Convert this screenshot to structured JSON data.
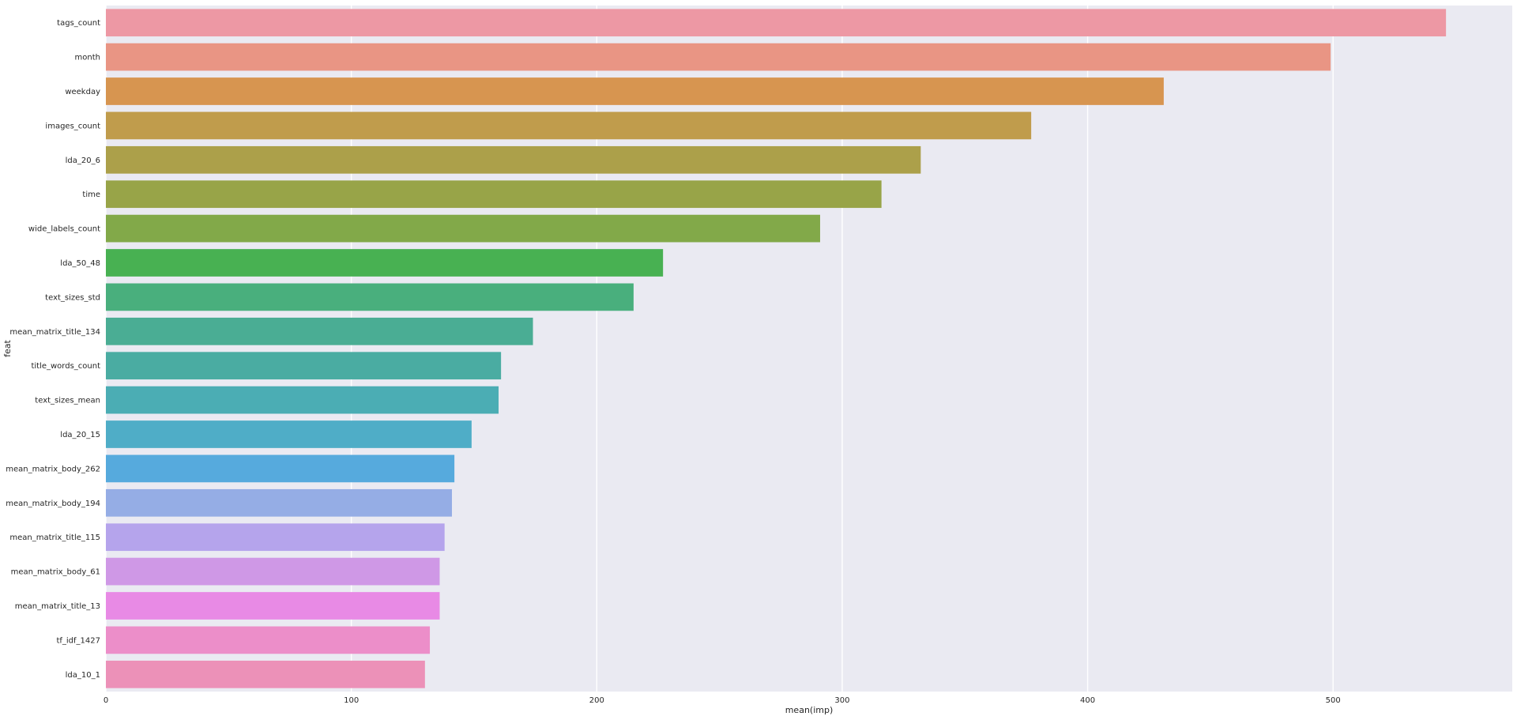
{
  "chart_data": {
    "type": "bar",
    "orientation": "horizontal",
    "xlabel": "mean(imp)",
    "ylabel": "feat",
    "xlim": [
      0,
      573
    ],
    "xticks": [
      0,
      100,
      200,
      300,
      400,
      500
    ],
    "grid": true,
    "legend": "none",
    "background_color": "#EAEAF2",
    "categories": [
      "tags_count",
      "month",
      "weekday",
      "images_count",
      "lda_20_6",
      "time",
      "wide_labels_count",
      "lda_50_48",
      "text_sizes_std",
      "mean_matrix_title_134",
      "title_words_count",
      "text_sizes_mean",
      "lda_20_15",
      "mean_matrix_body_262",
      "mean_matrix_body_194",
      "mean_matrix_title_115",
      "mean_matrix_body_61",
      "mean_matrix_title_13",
      "tf_idf_1427",
      "lda_10_1"
    ],
    "values": [
      546,
      499,
      431,
      377,
      332,
      316,
      291,
      227,
      215,
      174,
      161,
      160,
      149,
      142,
      141,
      138,
      136,
      136,
      132,
      130
    ],
    "colors": [
      "#ED98A4",
      "#E99584",
      "#D79550",
      "#C09C4C",
      "#ACA04A",
      "#98A448",
      "#82A949",
      "#48B152",
      "#49AF7D",
      "#4AAD94",
      "#4AACA2",
      "#4BADB4",
      "#4FADC7",
      "#56AADD",
      "#95ADE5",
      "#B5A4EC",
      "#CF98E6",
      "#E88AE5",
      "#EC8EC9",
      "#EC91B8"
    ]
  }
}
